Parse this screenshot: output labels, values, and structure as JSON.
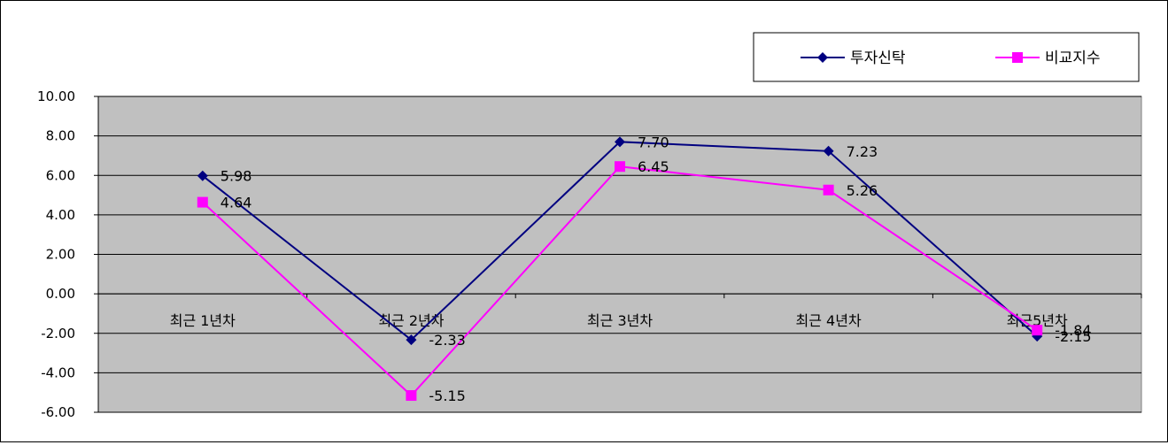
{
  "chart_data": {
    "type": "line",
    "categories": [
      "최근 1년차",
      "최근 2년차",
      "최근 3년차",
      "최근 4년차",
      "최근5년차"
    ],
    "series": [
      {
        "name": "투자신탁",
        "values": [
          5.98,
          -2.33,
          7.7,
          7.23,
          -2.15
        ],
        "labels": [
          "5.98",
          "-2.33",
          "7.70",
          "7.23",
          "-2.15"
        ],
        "color": "#000080",
        "marker": "diamond"
      },
      {
        "name": "비교지수",
        "values": [
          4.64,
          -5.15,
          6.45,
          5.26,
          -1.84
        ],
        "labels": [
          "4.64",
          "-5.15",
          "6.45",
          "5.26",
          "-1.84"
        ],
        "color": "#ff00ff",
        "marker": "square"
      }
    ],
    "ylim": [
      -6,
      10
    ],
    "y_ticks": [
      "10.00",
      "8.00",
      "6.00",
      "4.00",
      "2.00",
      "0.00",
      "-2.00",
      "-4.00",
      "-6.00"
    ],
    "y_tick_values": [
      10,
      8,
      6,
      4,
      2,
      0,
      -2,
      -4,
      -6
    ],
    "grid": true,
    "plot_background": "#c0c0c0",
    "legend_position": "top-right"
  }
}
